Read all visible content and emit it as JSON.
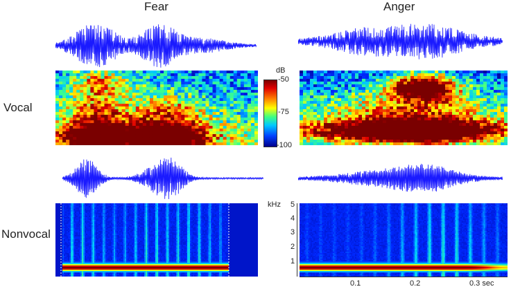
{
  "columns": {
    "fear": "Fear",
    "anger": "Anger"
  },
  "rows": {
    "vocal": "Vocal",
    "nonvocal": "Nonvocal"
  },
  "colorbar": {
    "unit": "dB",
    "ticks": [
      "-50",
      "-75",
      "-100"
    ]
  },
  "freq_axis": {
    "unit": "kHz",
    "ticks": [
      "5",
      "4",
      "3",
      "2",
      "1"
    ]
  },
  "time_axis": {
    "ticks": [
      "0.1",
      "0.2",
      "0.3 sec"
    ]
  },
  "colors": {
    "waveform": "#1a1aff",
    "low": "#00008b",
    "high": "#8b0000"
  }
}
